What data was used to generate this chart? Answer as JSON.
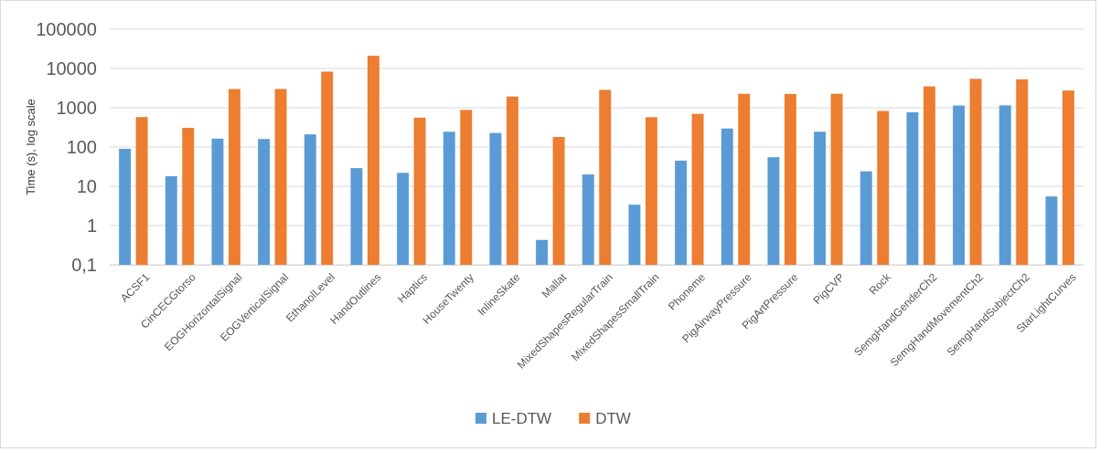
{
  "chart_data": {
    "type": "bar",
    "ylabel": "Time (s), log scale",
    "log": true,
    "grid": "y",
    "legend": "bottom",
    "categories": [
      "ACSF1",
      "CinCECGtorso",
      "EOGHorizontalSignal",
      "EOGVerticalSignal",
      "EthanolLevel",
      "HandOutlines",
      "Haptics",
      "HouseTwenty",
      "InlineSkate",
      "Mallat",
      "MixedShapesRegularTrain",
      "MixedShapesSmallTrain",
      "Phoneme",
      "PigAirwayPressure",
      "PigArtPressure",
      "PigCVP",
      "Rock",
      "SemgHandGenderCh2",
      "SemgHandMovementCh2",
      "SemgHandSubjectCh2",
      "StarLightCurves"
    ],
    "series": [
      {
        "name": "LE-DTW",
        "color": "#5b9bd5",
        "values": [
          90,
          18,
          163,
          160,
          210,
          29,
          22,
          245,
          228,
          0.43,
          20,
          3.4,
          45,
          296,
          55,
          245,
          24,
          766,
          1140,
          1150,
          5.5
        ]
      },
      {
        "name": "DTW",
        "color": "#ed7d31",
        "values": [
          580,
          308,
          3000,
          3000,
          8300,
          21000,
          560,
          880,
          1930,
          180,
          2850,
          575,
          700,
          2270,
          2250,
          2270,
          830,
          3500,
          5450,
          5300,
          2750
        ]
      }
    ],
    "ylim": [
      0.1,
      100000
    ],
    "yticks": [
      {
        "value": 0.1,
        "label": "0,1"
      },
      1,
      10,
      100,
      1000,
      10000,
      100000
    ]
  }
}
